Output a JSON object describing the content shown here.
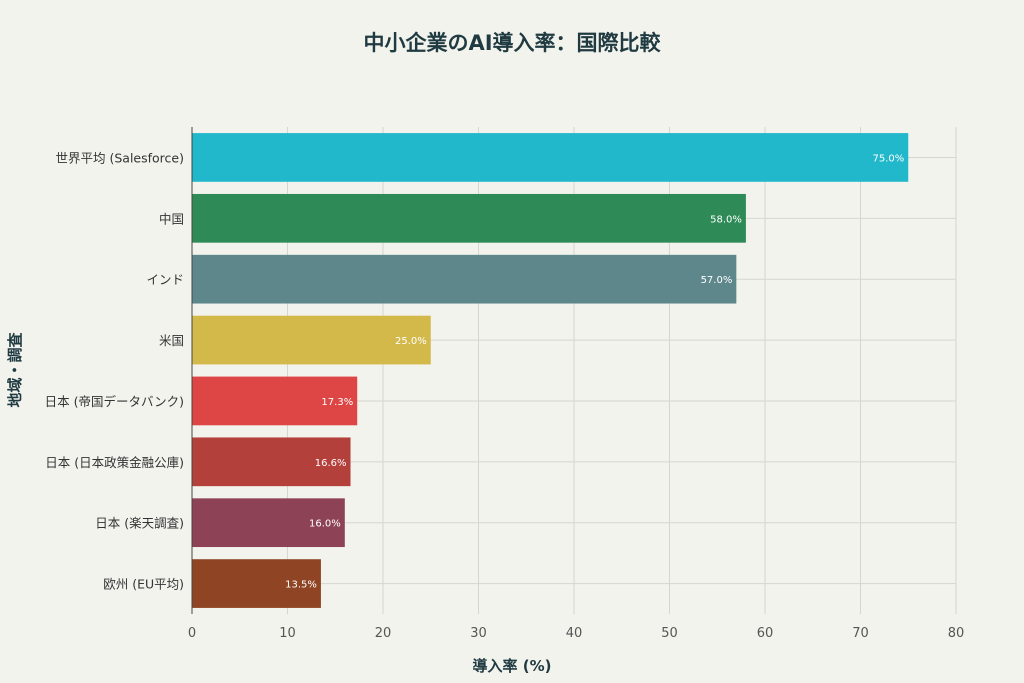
{
  "chart_data": {
    "type": "bar",
    "orientation": "horizontal",
    "title": "中小企業のAI導入率：国際比較",
    "xlabel": "導入率 (%)",
    "ylabel": "地域・調査",
    "xlim": [
      0,
      80
    ],
    "xticks": [
      0,
      10,
      20,
      30,
      40,
      50,
      60,
      70,
      80
    ],
    "grid": true,
    "categories": [
      "世界平均 (Salesforce)",
      "中国",
      "インド",
      "米国",
      "日本 (帝国データバンク)",
      "日本 (日本政策金融公庫)",
      "日本 (楽天調査)",
      "欧州 (EU平均)"
    ],
    "values": [
      75.0,
      58.0,
      57.0,
      25.0,
      17.3,
      16.6,
      16.0,
      13.5
    ],
    "value_labels": [
      "75.0%",
      "58.0%",
      "57.0%",
      "25.0%",
      "17.3%",
      "16.6%",
      "16.0%",
      "13.5%"
    ],
    "colors": [
      "#21b8cc",
      "#2e8b57",
      "#5e878c",
      "#d3b84a",
      "#dd4645",
      "#b4403c",
      "#8d4256",
      "#8f4424"
    ]
  }
}
